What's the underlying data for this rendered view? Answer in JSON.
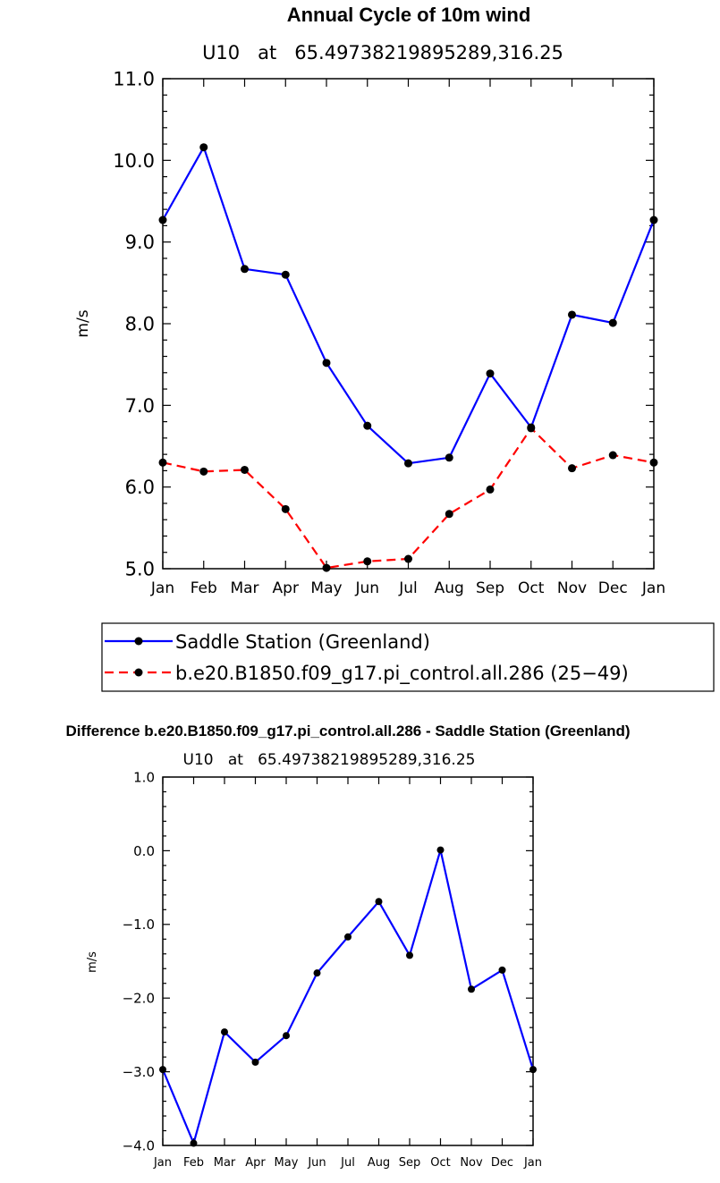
{
  "chart_data": [
    {
      "type": "line",
      "title": "Annual Cycle of 10m wind",
      "subtitle": "U10   at   65.49738219895289,316.25",
      "ylabel": "m/s",
      "xlabel": "",
      "ylim": [
        5.0,
        11.0
      ],
      "yticks": [
        "5.0",
        "6.0",
        "7.0",
        "8.0",
        "9.0",
        "10.0",
        "11.0"
      ],
      "categories": [
        "Jan",
        "Feb",
        "Mar",
        "Apr",
        "May",
        "Jun",
        "Jul",
        "Aug",
        "Sep",
        "Oct",
        "Nov",
        "Dec",
        "Jan"
      ],
      "series": [
        {
          "name": "Saddle Station (Greenland)",
          "color": "#0000ff",
          "dash": "solid",
          "values": [
            9.27,
            10.16,
            8.67,
            8.6,
            7.52,
            6.75,
            6.29,
            6.36,
            7.39,
            6.73,
            8.11,
            8.01,
            9.27
          ]
        },
        {
          "name": "b.e20.B1850.f09_g17.pi_control.all.286 (25−49)",
          "color": "#ff0000",
          "dash": "dashed",
          "values": [
            6.3,
            6.19,
            6.21,
            5.73,
            5.01,
            5.09,
            5.12,
            5.67,
            5.97,
            6.72,
            6.23,
            6.39,
            6.3
          ]
        }
      ],
      "legend": "below"
    },
    {
      "type": "line",
      "title": "Difference b.e20.B1850.f09_g17.pi_control.all.286 - Saddle Station (Greenland)",
      "subtitle": "U10   at   65.49738219895289,316.25",
      "ylabel": "m/s",
      "xlabel": "",
      "ylim": [
        -4.0,
        1.0
      ],
      "yticks": [
        "−4.0",
        "−3.0",
        "−2.0",
        "−1.0",
        "0.0",
        "1.0"
      ],
      "categories": [
        "Jan",
        "Feb",
        "Mar",
        "Apr",
        "May",
        "Jun",
        "Jul",
        "Aug",
        "Sep",
        "Oct",
        "Nov",
        "Dec",
        "Jan"
      ],
      "series": [
        {
          "name": "Difference",
          "color": "#0000ff",
          "dash": "solid",
          "values": [
            -2.97,
            -3.97,
            -2.46,
            -2.87,
            -2.51,
            -1.66,
            -1.17,
            -0.69,
            -1.42,
            0.01,
            -1.88,
            -1.62,
            -2.97
          ]
        }
      ]
    }
  ]
}
